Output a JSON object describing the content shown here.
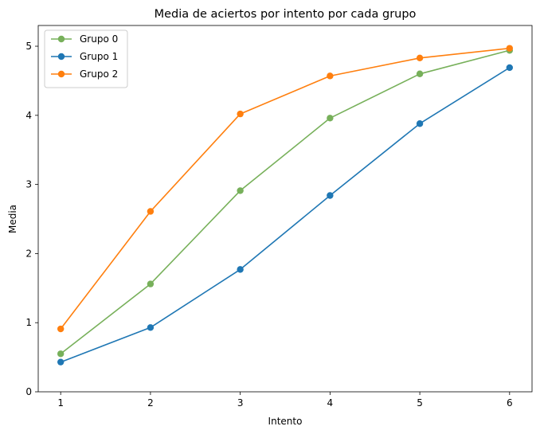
{
  "chart_data": {
    "type": "line",
    "title": "Media de aciertos por intento por cada grupo",
    "xlabel": "Intento",
    "ylabel": "Media",
    "x": [
      1,
      2,
      3,
      4,
      5,
      6
    ],
    "xlim": [
      0.75,
      6.25
    ],
    "ylim": [
      0,
      5.3
    ],
    "xticks": [
      "1",
      "2",
      "3",
      "4",
      "5",
      "6"
    ],
    "yticks": [
      "0",
      "1",
      "2",
      "3",
      "4",
      "5"
    ],
    "grid": false,
    "legend_position": "top-left",
    "series": [
      {
        "name": "Grupo 0",
        "color": "#77b05a",
        "values": [
          0.55,
          1.56,
          2.91,
          3.96,
          4.6,
          4.94
        ]
      },
      {
        "name": "Grupo 1",
        "color": "#1f77b4",
        "values": [
          0.43,
          0.93,
          1.77,
          2.84,
          3.88,
          4.69
        ]
      },
      {
        "name": "Grupo 2",
        "color": "#ff7f0e",
        "values": [
          0.91,
          2.61,
          4.02,
          4.57,
          4.83,
          4.97
        ]
      }
    ]
  }
}
